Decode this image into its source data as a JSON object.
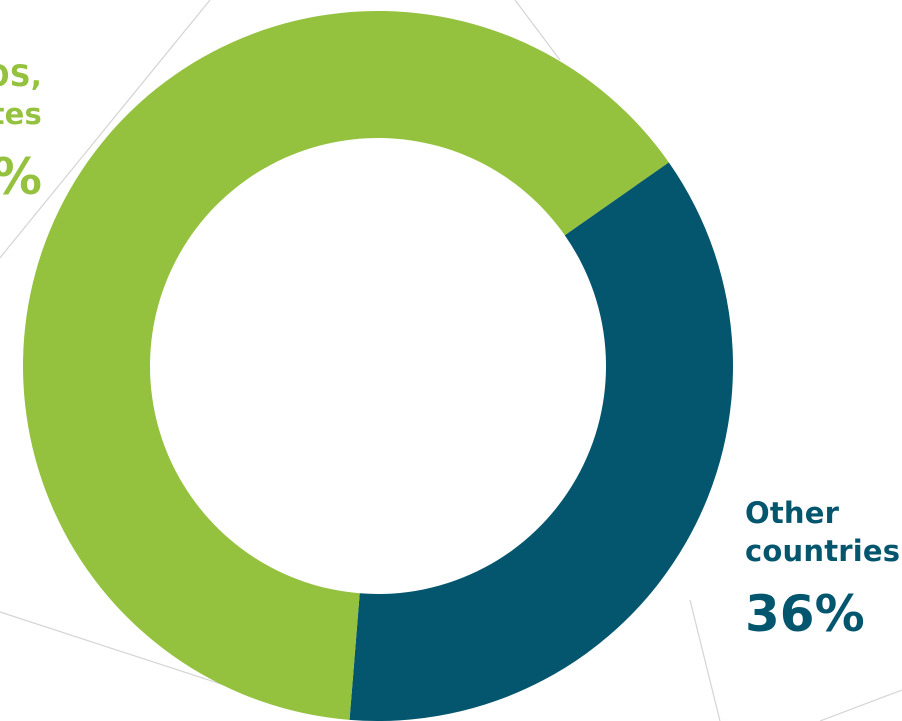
{
  "chart_data": {
    "type": "pie",
    "donut": true,
    "slices": [
      {
        "label_lines": [
          "Other",
          "countries"
        ],
        "value": 36,
        "value_text": "36%",
        "color": "#04566e"
      },
      {
        "label_lines": [
          "OS,",
          "tes"
        ],
        "value": 64,
        "value_text": "%",
        "color": "#94c13e"
      }
    ],
    "background_color": "#ffffff",
    "guide_line_color": "#d4d4d4"
  }
}
